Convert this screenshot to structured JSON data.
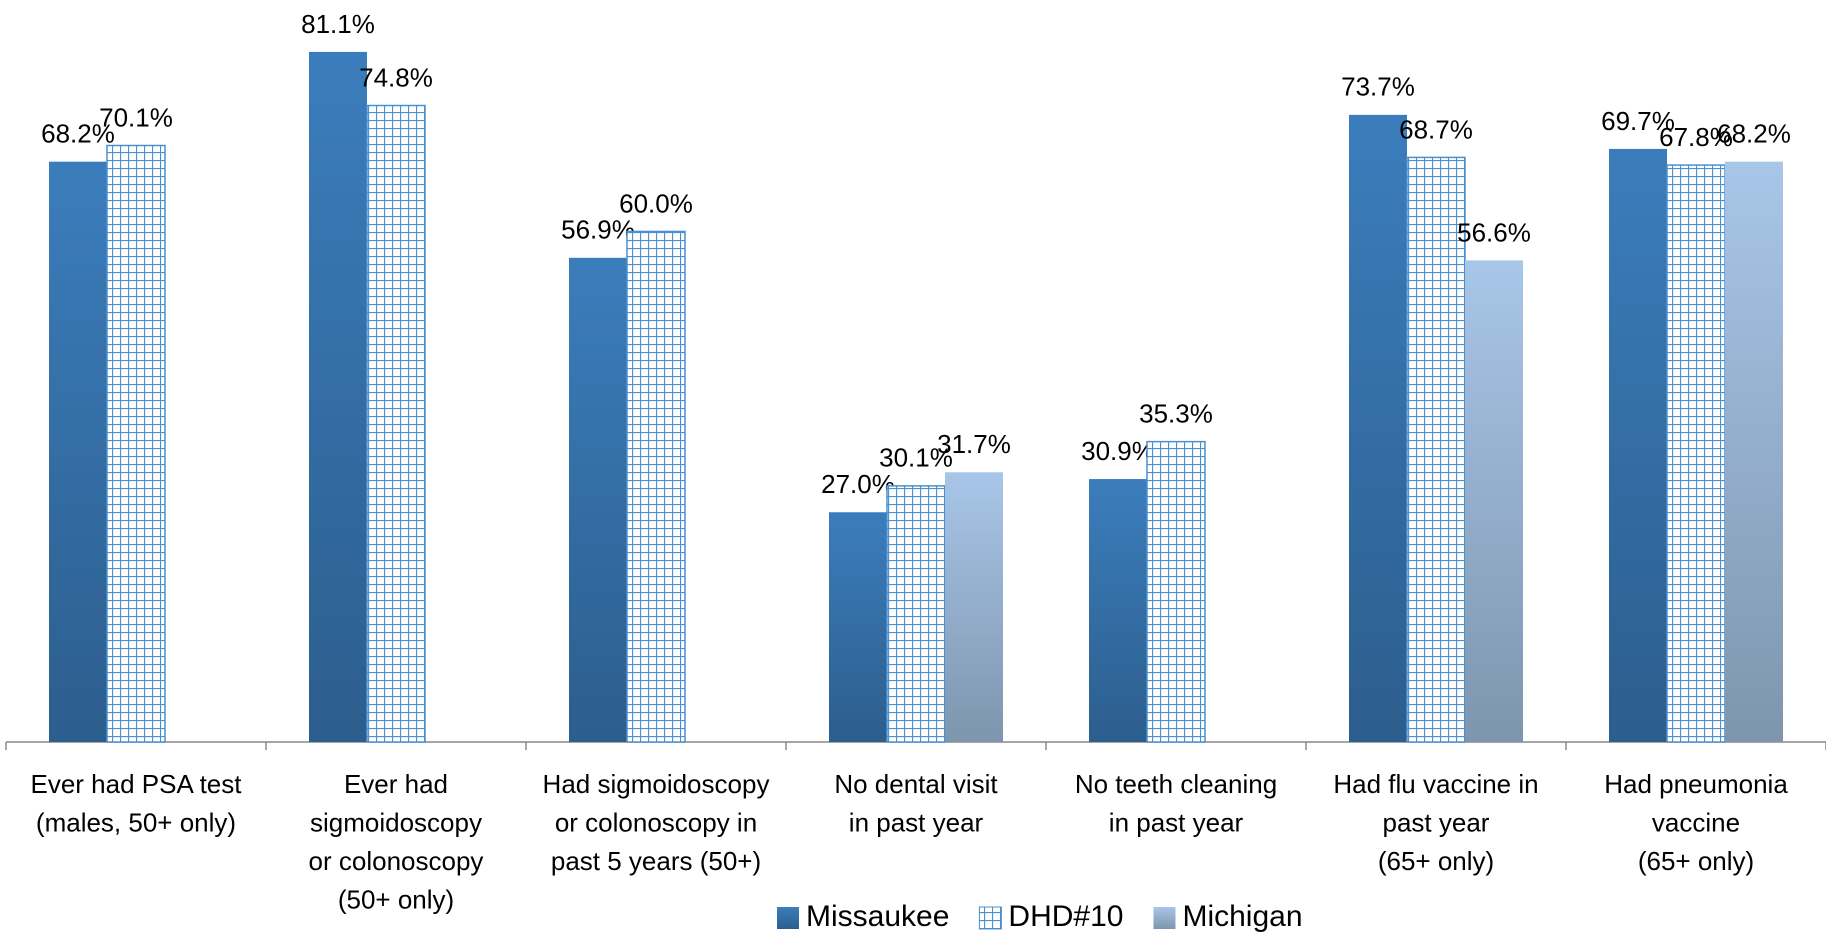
{
  "chart_data": {
    "type": "bar",
    "categories": [
      [
        "Ever had PSA test",
        "(males, 50+ only)"
      ],
      [
        "Ever had",
        "sigmoidoscopy",
        "or colonoscopy",
        "(50+ only)"
      ],
      [
        "Had sigmoidoscopy",
        "or colonoscopy in",
        "past 5 years (50+)"
      ],
      [
        "No dental visit",
        "in past year"
      ],
      [
        "No teeth cleaning",
        "in past year"
      ],
      [
        "Had flu vaccine in",
        "past year",
        "(65+ only)"
      ],
      [
        "Had pneumonia",
        "vaccine",
        "(65+ only)"
      ]
    ],
    "series": [
      {
        "name": "Missaukee",
        "color": "#3b7dbc",
        "fill": "gradient",
        "values": [
          68.2,
          81.1,
          56.9,
          27.0,
          30.9,
          73.7,
          69.7
        ],
        "value_labels": [
          "68.2%",
          "81.1%",
          "56.9%",
          "27.0%",
          "30.9%",
          "73.7%",
          "69.7%"
        ]
      },
      {
        "name": "DHD#10",
        "color": "#4a90d0",
        "fill": "grid",
        "values": [
          70.1,
          74.8,
          60.0,
          30.1,
          35.3,
          68.7,
          67.8
        ],
        "value_labels": [
          "70.1%",
          "74.8%",
          "60.0%",
          "30.1%",
          "35.3%",
          "68.7%",
          "67.8%"
        ]
      },
      {
        "name": "Michigan",
        "color": "#a8c6e8",
        "fill": "gradient",
        "values": [
          null,
          null,
          null,
          31.7,
          null,
          56.6,
          68.2
        ],
        "value_labels": [
          null,
          null,
          null,
          "31.7%",
          null,
          "56.6%",
          "68.2%"
        ]
      }
    ],
    "ylim": [
      0,
      87.2
    ],
    "legend": "bottom"
  }
}
